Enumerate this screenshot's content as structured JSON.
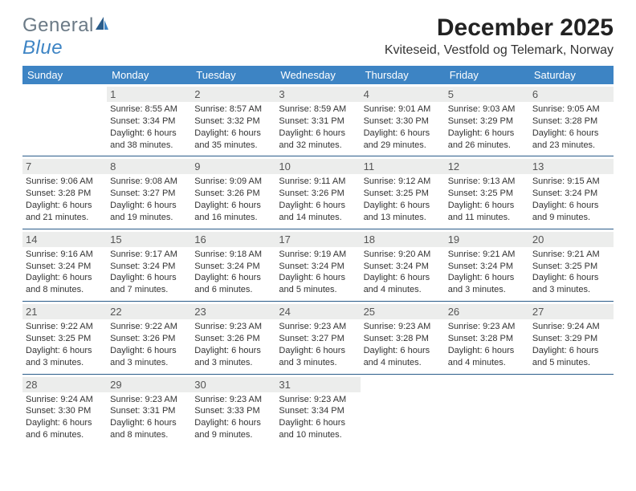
{
  "brand": {
    "part1": "General",
    "part2": "Blue"
  },
  "title": "December 2025",
  "location": "Kviteseid, Vestfold og Telemark, Norway",
  "colors": {
    "header_bg": "#3d84c4",
    "rule": "#2a5c8a",
    "daynum_bg": "#ecedec",
    "text": "#333333",
    "logo_gray": "#6b7a86",
    "logo_blue": "#3d84c4"
  },
  "columns": [
    "Sunday",
    "Monday",
    "Tuesday",
    "Wednesday",
    "Thursday",
    "Friday",
    "Saturday"
  ],
  "weeks": [
    [
      {
        "day": "",
        "sunrise": "",
        "sunset": "",
        "daylight": ""
      },
      {
        "day": "1",
        "sunrise": "8:55 AM",
        "sunset": "3:34 PM",
        "daylight": "6 hours and 38 minutes."
      },
      {
        "day": "2",
        "sunrise": "8:57 AM",
        "sunset": "3:32 PM",
        "daylight": "6 hours and 35 minutes."
      },
      {
        "day": "3",
        "sunrise": "8:59 AM",
        "sunset": "3:31 PM",
        "daylight": "6 hours and 32 minutes."
      },
      {
        "day": "4",
        "sunrise": "9:01 AM",
        "sunset": "3:30 PM",
        "daylight": "6 hours and 29 minutes."
      },
      {
        "day": "5",
        "sunrise": "9:03 AM",
        "sunset": "3:29 PM",
        "daylight": "6 hours and 26 minutes."
      },
      {
        "day": "6",
        "sunrise": "9:05 AM",
        "sunset": "3:28 PM",
        "daylight": "6 hours and 23 minutes."
      }
    ],
    [
      {
        "day": "7",
        "sunrise": "9:06 AM",
        "sunset": "3:28 PM",
        "daylight": "6 hours and 21 minutes."
      },
      {
        "day": "8",
        "sunrise": "9:08 AM",
        "sunset": "3:27 PM",
        "daylight": "6 hours and 19 minutes."
      },
      {
        "day": "9",
        "sunrise": "9:09 AM",
        "sunset": "3:26 PM",
        "daylight": "6 hours and 16 minutes."
      },
      {
        "day": "10",
        "sunrise": "9:11 AM",
        "sunset": "3:26 PM",
        "daylight": "6 hours and 14 minutes."
      },
      {
        "day": "11",
        "sunrise": "9:12 AM",
        "sunset": "3:25 PM",
        "daylight": "6 hours and 13 minutes."
      },
      {
        "day": "12",
        "sunrise": "9:13 AM",
        "sunset": "3:25 PM",
        "daylight": "6 hours and 11 minutes."
      },
      {
        "day": "13",
        "sunrise": "9:15 AM",
        "sunset": "3:24 PM",
        "daylight": "6 hours and 9 minutes."
      }
    ],
    [
      {
        "day": "14",
        "sunrise": "9:16 AM",
        "sunset": "3:24 PM",
        "daylight": "6 hours and 8 minutes."
      },
      {
        "day": "15",
        "sunrise": "9:17 AM",
        "sunset": "3:24 PM",
        "daylight": "6 hours and 7 minutes."
      },
      {
        "day": "16",
        "sunrise": "9:18 AM",
        "sunset": "3:24 PM",
        "daylight": "6 hours and 6 minutes."
      },
      {
        "day": "17",
        "sunrise": "9:19 AM",
        "sunset": "3:24 PM",
        "daylight": "6 hours and 5 minutes."
      },
      {
        "day": "18",
        "sunrise": "9:20 AM",
        "sunset": "3:24 PM",
        "daylight": "6 hours and 4 minutes."
      },
      {
        "day": "19",
        "sunrise": "9:21 AM",
        "sunset": "3:24 PM",
        "daylight": "6 hours and 3 minutes."
      },
      {
        "day": "20",
        "sunrise": "9:21 AM",
        "sunset": "3:25 PM",
        "daylight": "6 hours and 3 minutes."
      }
    ],
    [
      {
        "day": "21",
        "sunrise": "9:22 AM",
        "sunset": "3:25 PM",
        "daylight": "6 hours and 3 minutes."
      },
      {
        "day": "22",
        "sunrise": "9:22 AM",
        "sunset": "3:26 PM",
        "daylight": "6 hours and 3 minutes."
      },
      {
        "day": "23",
        "sunrise": "9:23 AM",
        "sunset": "3:26 PM",
        "daylight": "6 hours and 3 minutes."
      },
      {
        "day": "24",
        "sunrise": "9:23 AM",
        "sunset": "3:27 PM",
        "daylight": "6 hours and 3 minutes."
      },
      {
        "day": "25",
        "sunrise": "9:23 AM",
        "sunset": "3:28 PM",
        "daylight": "6 hours and 4 minutes."
      },
      {
        "day": "26",
        "sunrise": "9:23 AM",
        "sunset": "3:28 PM",
        "daylight": "6 hours and 4 minutes."
      },
      {
        "day": "27",
        "sunrise": "9:24 AM",
        "sunset": "3:29 PM",
        "daylight": "6 hours and 5 minutes."
      }
    ],
    [
      {
        "day": "28",
        "sunrise": "9:24 AM",
        "sunset": "3:30 PM",
        "daylight": "6 hours and 6 minutes."
      },
      {
        "day": "29",
        "sunrise": "9:23 AM",
        "sunset": "3:31 PM",
        "daylight": "6 hours and 8 minutes."
      },
      {
        "day": "30",
        "sunrise": "9:23 AM",
        "sunset": "3:33 PM",
        "daylight": "6 hours and 9 minutes."
      },
      {
        "day": "31",
        "sunrise": "9:23 AM",
        "sunset": "3:34 PM",
        "daylight": "6 hours and 10 minutes."
      },
      {
        "day": "",
        "sunrise": "",
        "sunset": "",
        "daylight": ""
      },
      {
        "day": "",
        "sunrise": "",
        "sunset": "",
        "daylight": ""
      },
      {
        "day": "",
        "sunrise": "",
        "sunset": "",
        "daylight": ""
      }
    ]
  ],
  "labels": {
    "sunrise": "Sunrise:",
    "sunset": "Sunset:",
    "daylight": "Daylight:"
  }
}
